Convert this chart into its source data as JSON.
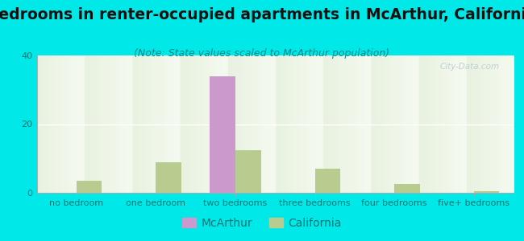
{
  "title": "Bedrooms in renter-occupied apartments in McArthur, California",
  "subtitle": "(Note: State values scaled to McArthur population)",
  "categories": [
    "no bedroom",
    "one bedroom",
    "two bedrooms",
    "three bedrooms",
    "four bedrooms",
    "five+ bedrooms"
  ],
  "mcarthur_values": [
    0,
    0,
    34,
    0,
    0,
    0
  ],
  "california_values": [
    3.5,
    9,
    12.5,
    7,
    2.5,
    0.5
  ],
  "mcarthur_color": "#cc99cc",
  "california_color": "#b8cc90",
  "background_outer": "#00e8e8",
  "background_inner_top": "#e8f2e0",
  "background_inner_bottom": "#f5faf0",
  "ylim": [
    0,
    40
  ],
  "yticks": [
    0,
    20,
    40
  ],
  "grid_color": "#ffffff",
  "title_fontsize": 13.5,
  "subtitle_fontsize": 9,
  "tick_fontsize": 8,
  "legend_fontsize": 10,
  "bar_width": 0.32,
  "title_color": "#111111",
  "subtitle_color": "#008888",
  "tick_color": "#007777",
  "watermark_color": "#bbcccc"
}
